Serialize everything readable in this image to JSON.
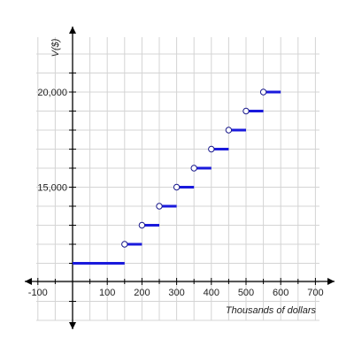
{
  "chart_data": {
    "type": "step",
    "ylabel": "V($)",
    "xlabel": "Thousands of dollars",
    "xlim": [
      -100,
      700
    ],
    "ylim": [
      10000,
      21500
    ],
    "grid": true,
    "x_ticks": [
      -100,
      100,
      200,
      300,
      400,
      500,
      600,
      700
    ],
    "x_tick_labels": [
      "-100",
      "100",
      "200",
      "300",
      "400",
      "500",
      "600",
      "700"
    ],
    "y_ticks": [
      15000,
      20000
    ],
    "y_tick_labels": [
      "15,000",
      "20,000"
    ],
    "segments": [
      {
        "x_start": 0,
        "x_end": 150,
        "y": 11000,
        "open_start": false
      },
      {
        "x_start": 150,
        "x_end": 200,
        "y": 12000,
        "open_start": true
      },
      {
        "x_start": 200,
        "x_end": 250,
        "y": 13000,
        "open_start": true
      },
      {
        "x_start": 250,
        "x_end": 300,
        "y": 14000,
        "open_start": true
      },
      {
        "x_start": 300,
        "x_end": 350,
        "y": 15000,
        "open_start": true
      },
      {
        "x_start": 350,
        "x_end": 400,
        "y": 16000,
        "open_start": true
      },
      {
        "x_start": 400,
        "x_end": 450,
        "y": 17000,
        "open_start": true
      },
      {
        "x_start": 450,
        "x_end": 500,
        "y": 18000,
        "open_start": true
      },
      {
        "x_start": 500,
        "x_end": 550,
        "y": 19000,
        "open_start": true
      },
      {
        "x_start": 550,
        "x_end": 600,
        "y": 20000,
        "open_start": true
      }
    ],
    "colors": {
      "step_line": "#1a1adc",
      "axis": "#000000",
      "grid": "#d4d4d4",
      "marker_fill": "#ffffff",
      "marker_stroke": "#1a1a8c"
    }
  }
}
